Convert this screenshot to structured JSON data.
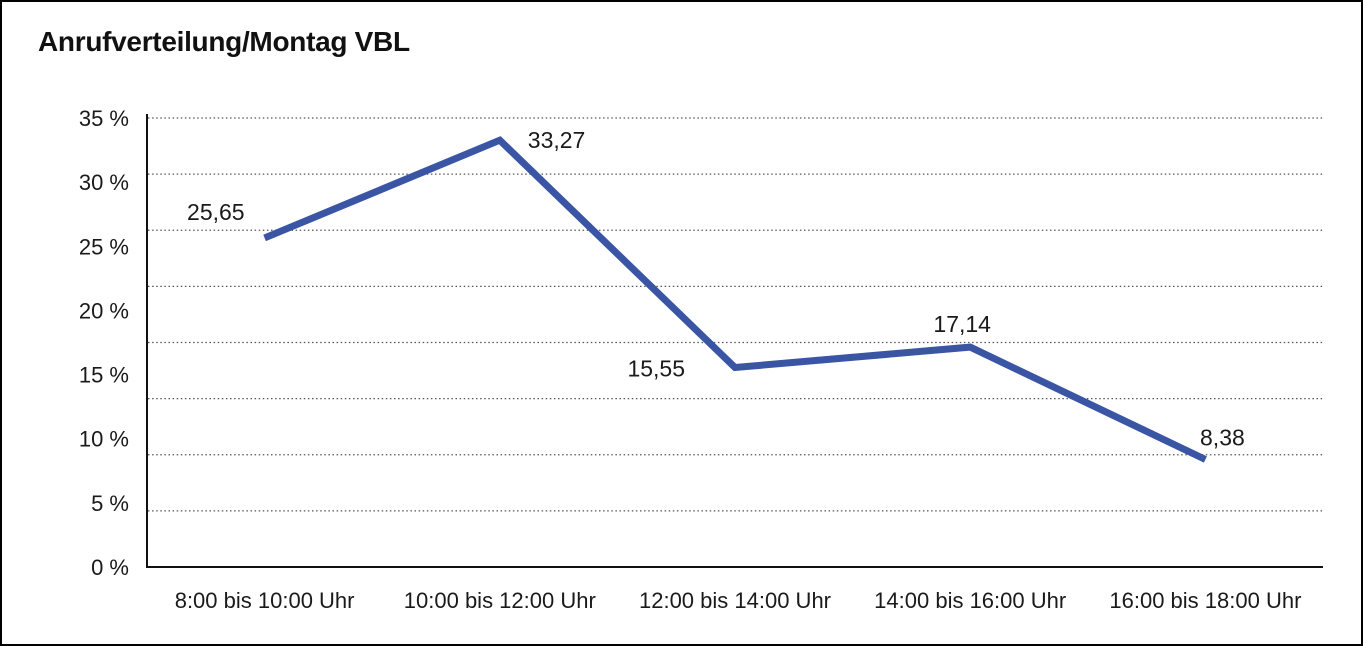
{
  "page": {
    "background": "#ffffff",
    "border_color": "#000000"
  },
  "chart_data": {
    "type": "line",
    "title": "Anrufverteilung/Montag VBL",
    "categories": [
      "8:00 bis 10:00 Uhr",
      "10:00 bis 12:00 Uhr",
      "12:00 bis 14:00 Uhr",
      "14:00 bis 16:00 Uhr",
      "16:00 bis 18:00 Uhr"
    ],
    "values": [
      25.65,
      33.27,
      15.55,
      17.14,
      8.38
    ],
    "point_labels": [
      "25,65",
      "33,27",
      "15,55",
      "17,14",
      "8,38"
    ],
    "xlabel": "",
    "ylabel": "",
    "ylim": [
      0,
      35
    ],
    "y_tick_labels": [
      "35 %",
      "30 %",
      "25 %",
      "20 %",
      "15 %",
      "10 %",
      "5 %",
      "0 %"
    ],
    "grid": "dotted-horizontal",
    "legend": "none",
    "line_color": "#3A55A4",
    "axis_color": "#111111",
    "grid_color": "#555555",
    "text_color": "#1a1a1a"
  }
}
